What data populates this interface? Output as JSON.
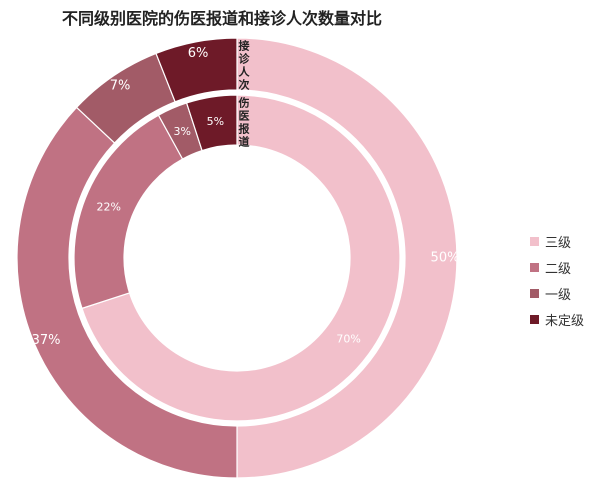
{
  "title": "不同级别医院的伤医报道和接诊人次数量对比",
  "chart_data": {
    "type": "pie",
    "variant": "nested-donut",
    "title": "不同级别医院的伤医报道和接诊人次数量对比",
    "categories": [
      "三级",
      "二级",
      "一级",
      "未定级"
    ],
    "colors": [
      "#f2c0cb",
      "#c07283",
      "#a25b67",
      "#6e1a28"
    ],
    "series": [
      {
        "name": "伤医报道",
        "ring": "inner",
        "values": [
          70,
          22,
          3,
          5
        ],
        "labels": [
          "70%",
          "22%",
          "3%",
          "5%"
        ]
      },
      {
        "name": "接诊人次",
        "ring": "outer",
        "values": [
          50,
          37,
          7,
          6
        ],
        "labels": [
          "50%",
          "37%",
          "7%",
          "6%"
        ]
      }
    ],
    "legend": {
      "position": "right",
      "entries": [
        "三级",
        "二级",
        "一级",
        "未定级"
      ]
    }
  }
}
